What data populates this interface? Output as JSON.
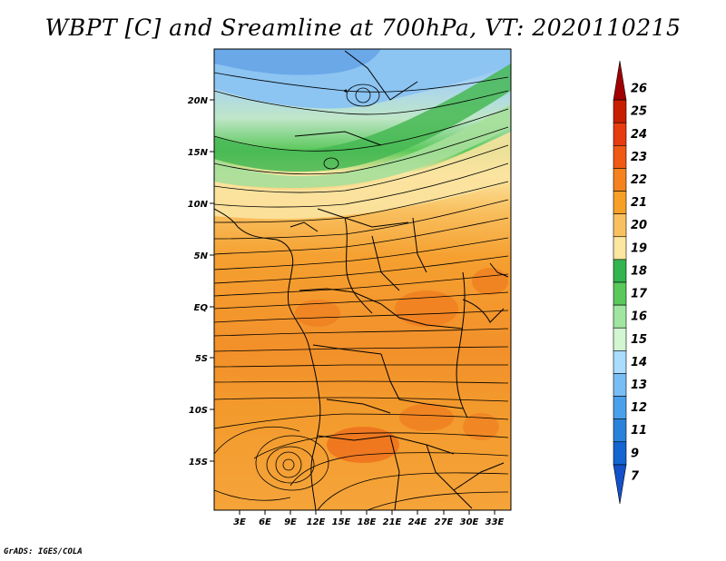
{
  "title": "WBPT [C] and Sreamline at 700hPa, VT: 2020110215",
  "credit": "GrADS: IGES/COLA",
  "map": {
    "lat_labels": [
      "20N",
      "15N",
      "10N",
      "5N",
      "EQ",
      "5S",
      "10S",
      "15S"
    ],
    "lon_labels": [
      "3E",
      "6E",
      "9E",
      "12E",
      "15E",
      "18E",
      "21E",
      "24E",
      "27E",
      "30E",
      "33E"
    ]
  },
  "colorbar": {
    "labels": [
      "26",
      "25",
      "24",
      "23",
      "22",
      "21",
      "20",
      "19",
      "18",
      "17",
      "16",
      "15",
      "14",
      "13",
      "12",
      "11",
      "9",
      "7"
    ],
    "colors": [
      "#a00000",
      "#c81e00",
      "#e63c10",
      "#f05a14",
      "#f5821e",
      "#f7a028",
      "#f9c060",
      "#fde6a0",
      "#32b450",
      "#5ac85a",
      "#a0e6a0",
      "#d2f5d2",
      "#aadcff",
      "#78bef5",
      "#4ba0eb",
      "#2882dc",
      "#1464d2",
      "#1450c8"
    ]
  }
}
